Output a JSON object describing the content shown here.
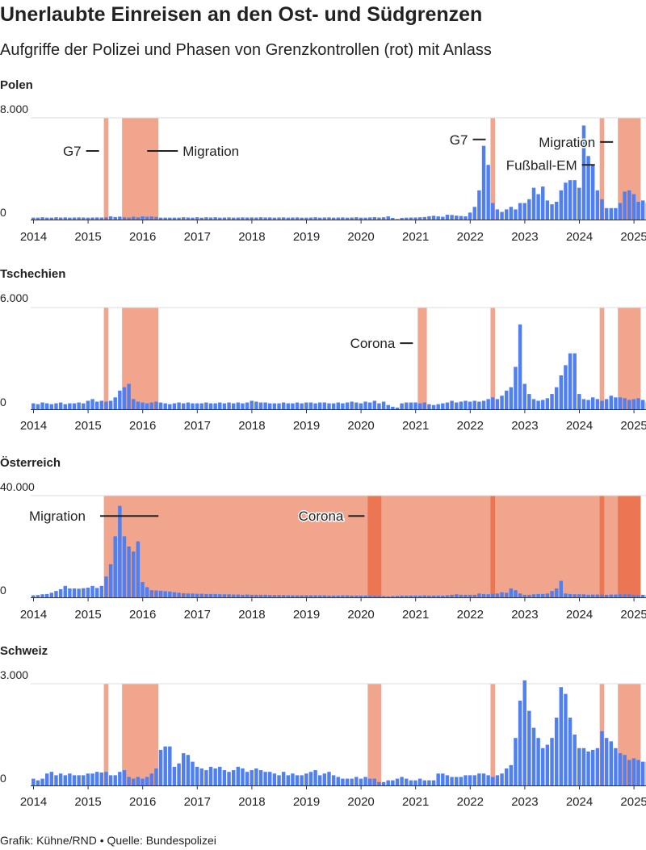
{
  "title": "Unerlaubte Einreisen an den Ost- und Südgrenzen",
  "subtitle": "Aufgriffe der Polizei und Phasen von Grenzkontrollen (rot) mit Anlass",
  "footer": "Grafik: Kühne/RND • Quelle: Bundespolizei",
  "colors": {
    "bar": "#4f7ff0",
    "band": "#f0a58c",
    "band_dark": "#ec7653",
    "grid": "#dddddd",
    "axis": "#333333",
    "text": "#222222"
  },
  "chart_data": [
    {
      "type": "bar",
      "title": "Polen",
      "ytick_labels": [
        "8.000",
        "0"
      ],
      "ylim": [
        0,
        8000
      ],
      "xtick_labels": [
        "2014",
        "2015",
        "2016",
        "2017",
        "2018",
        "2019",
        "2020",
        "2021",
        "2022",
        "2023",
        "2024",
        "2025"
      ],
      "x_start": "2014-01",
      "values": [
        150,
        150,
        180,
        150,
        150,
        180,
        160,
        170,
        150,
        160,
        170,
        160,
        150,
        160,
        170,
        160,
        180,
        250,
        200,
        230,
        180,
        160,
        220,
        180,
        250,
        220,
        240,
        200,
        150,
        150,
        150,
        150,
        150,
        180,
        160,
        150,
        180,
        150,
        180,
        160,
        180,
        150,
        160,
        170,
        150,
        160,
        170,
        160,
        170,
        160,
        180,
        160,
        170,
        150,
        160,
        170,
        150,
        160,
        170,
        150,
        150,
        160,
        180,
        150,
        160,
        170,
        150,
        160,
        170,
        150,
        160,
        180,
        150,
        150,
        170,
        190,
        160,
        180,
        250,
        130,
        40,
        130,
        150,
        160,
        160,
        180,
        200,
        260,
        300,
        250,
        220,
        380,
        360,
        310,
        280,
        250,
        550,
        1000,
        2300,
        5800,
        4300,
        1300,
        800,
        600,
        800,
        1000,
        800,
        1300,
        1300,
        1600,
        2500,
        2000,
        2600,
        1500,
        1200,
        1400,
        2300,
        2900,
        3100,
        3100,
        2500,
        7400,
        5000,
        4300,
        2300,
        1600,
        900,
        900,
        900,
        1300,
        2200,
        2300,
        2000,
        1400,
        1500,
        1300,
        1000,
        800,
        950
      ],
      "bands": [
        {
          "start": "2015-05",
          "end": "2015-06",
          "tone": "light"
        },
        {
          "start": "2015-09",
          "end": "2016-05",
          "tone": "light"
        },
        {
          "start": "2022-06",
          "end": "2022-07",
          "tone": "light"
        },
        {
          "start": "2024-06",
          "end": "2024-07",
          "tone": "light"
        },
        {
          "start": "2024-10",
          "end": "2025-03",
          "tone": "light"
        }
      ],
      "annotations": [
        {
          "text": "G7",
          "x": "2015-05",
          "y": 5400,
          "side": "left"
        },
        {
          "text": "Migration",
          "x": "2016-05",
          "y": 5400,
          "side": "right"
        },
        {
          "text": "G7",
          "x": "2022-06",
          "y": 6300,
          "side": "left"
        },
        {
          "text": "Migration",
          "x": "2024-10",
          "y": 6100,
          "side": "left"
        },
        {
          "text": "Fußball-EM",
          "x": "2024-06",
          "y": 4300,
          "side": "left"
        }
      ]
    },
    {
      "type": "bar",
      "title": "Tschechien",
      "ytick_labels": [
        "6.000",
        "0"
      ],
      "ylim": [
        0,
        6000
      ],
      "xtick_labels": [
        "2014",
        "2015",
        "2016",
        "2017",
        "2018",
        "2019",
        "2020",
        "2021",
        "2022",
        "2023",
        "2024",
        "2025"
      ],
      "x_start": "2014-01",
      "values": [
        350,
        300,
        400,
        350,
        300,
        350,
        400,
        300,
        350,
        350,
        400,
        350,
        500,
        600,
        450,
        500,
        450,
        500,
        700,
        1100,
        1300,
        1500,
        600,
        450,
        400,
        350,
        400,
        450,
        400,
        350,
        300,
        350,
        400,
        350,
        400,
        350,
        350,
        350,
        400,
        350,
        350,
        400,
        350,
        400,
        350,
        400,
        350,
        400,
        500,
        450,
        400,
        400,
        350,
        350,
        350,
        400,
        350,
        350,
        400,
        350,
        400,
        400,
        350,
        400,
        400,
        350,
        350,
        400,
        350,
        400,
        450,
        400,
        350,
        450,
        400,
        500,
        350,
        450,
        250,
        150,
        100,
        350,
        400,
        400,
        400,
        350,
        400,
        300,
        250,
        300,
        350,
        400,
        500,
        400,
        450,
        500,
        450,
        500,
        450,
        500,
        600,
        700,
        600,
        800,
        1100,
        1300,
        2500,
        5000,
        1500,
        900,
        600,
        500,
        550,
        650,
        900,
        1300,
        2000,
        2600,
        3300,
        3300,
        900,
        600,
        550,
        700,
        600,
        500,
        600,
        800,
        700,
        700,
        650,
        550,
        600,
        650,
        550,
        400,
        450,
        600,
        500
      ],
      "bands": [
        {
          "start": "2015-05",
          "end": "2015-06",
          "tone": "light"
        },
        {
          "start": "2015-09",
          "end": "2016-05",
          "tone": "light"
        },
        {
          "start": "2021-02",
          "end": "2021-04",
          "tone": "light"
        },
        {
          "start": "2022-06",
          "end": "2022-07",
          "tone": "light"
        },
        {
          "start": "2024-06",
          "end": "2024-07",
          "tone": "light"
        },
        {
          "start": "2024-10",
          "end": "2025-03",
          "tone": "light"
        }
      ],
      "annotations": [
        {
          "text": "Corona",
          "x": "2021-02",
          "y": 3900,
          "side": "left"
        }
      ]
    },
    {
      "type": "bar",
      "title": "Österreich",
      "ytick_labels": [
        "40.000",
        "0"
      ],
      "ylim": [
        0,
        40000
      ],
      "xtick_labels": [
        "2014",
        "2015",
        "2016",
        "2017",
        "2018",
        "2019",
        "2020",
        "2021",
        "2022",
        "2023",
        "2024",
        "2025"
      ],
      "x_start": "2014-01",
      "values": [
        800,
        900,
        1200,
        1300,
        1800,
        2500,
        3200,
        4500,
        3500,
        3500,
        3400,
        3600,
        3800,
        4500,
        3700,
        4500,
        8200,
        13000,
        24000,
        36000,
        24000,
        20000,
        18000,
        22000,
        6000,
        4000,
        2800,
        2700,
        2600,
        2400,
        2300,
        2000,
        1800,
        1600,
        1500,
        1500,
        1400,
        1400,
        1300,
        1300,
        1300,
        1200,
        1200,
        1200,
        1100,
        1100,
        1000,
        1100,
        1000,
        1000,
        1000,
        1000,
        900,
        900,
        900,
        900,
        800,
        800,
        800,
        800,
        800,
        800,
        800,
        800,
        800,
        700,
        700,
        700,
        800,
        800,
        700,
        700,
        700,
        700,
        700,
        700,
        600,
        500,
        400,
        500,
        600,
        700,
        700,
        700,
        700,
        700,
        800,
        700,
        700,
        700,
        700,
        800,
        1000,
        1200,
        1000,
        1000,
        1000,
        1000,
        1500,
        1300,
        1200,
        1400,
        1500,
        2000,
        1800,
        3500,
        2800,
        1500,
        1000,
        1000,
        1200,
        1300,
        1300,
        1500,
        2500,
        3500,
        6500,
        1500,
        1300,
        1200,
        1200,
        1200,
        1000,
        1100,
        1100,
        1100,
        1000,
        1100,
        1100,
        1200,
        1200,
        1200,
        1000,
        900,
        1000,
        1000,
        900,
        800,
        800
      ],
      "bands": [
        {
          "start": "2015-05",
          "end": "2025-03",
          "tone": "light"
        },
        {
          "start": "2020-03",
          "end": "2020-06",
          "tone": "dark"
        },
        {
          "start": "2022-06",
          "end": "2022-07",
          "tone": "dark"
        },
        {
          "start": "2024-06",
          "end": "2024-07",
          "tone": "dark"
        },
        {
          "start": "2024-10",
          "end": "2025-03",
          "tone": "dark"
        }
      ],
      "annotations": [
        {
          "text": "Migration",
          "x": "2016-05",
          "y": 32000,
          "side": "right-line"
        },
        {
          "text": "Corona",
          "x": "2020-03",
          "y": 32000,
          "side": "left-halo"
        }
      ]
    },
    {
      "type": "bar",
      "title": "Schweiz",
      "ytick_labels": [
        "3.000",
        "0"
      ],
      "ylim": [
        0,
        3000
      ],
      "xtick_labels": [
        "2014",
        "2015",
        "2016",
        "2017",
        "2018",
        "2019",
        "2020",
        "2021",
        "2022",
        "2023",
        "2024",
        "2025"
      ],
      "x_start": "2014-01",
      "values": [
        200,
        150,
        200,
        350,
        400,
        300,
        350,
        300,
        350,
        300,
        300,
        300,
        350,
        350,
        400,
        380,
        400,
        300,
        300,
        400,
        450,
        250,
        200,
        250,
        200,
        250,
        350,
        500,
        1050,
        1150,
        1150,
        550,
        650,
        950,
        900,
        700,
        550,
        500,
        450,
        550,
        500,
        550,
        450,
        400,
        450,
        550,
        500,
        400,
        450,
        500,
        450,
        400,
        400,
        350,
        300,
        400,
        300,
        350,
        300,
        300,
        350,
        400,
        450,
        300,
        350,
        400,
        300,
        250,
        200,
        200,
        200,
        250,
        200,
        250,
        200,
        200,
        100,
        100,
        150,
        150,
        200,
        250,
        200,
        150,
        150,
        200,
        150,
        150,
        150,
        350,
        350,
        300,
        250,
        250,
        250,
        300,
        300,
        300,
        350,
        350,
        300,
        250,
        300,
        350,
        500,
        600,
        1400,
        2500,
        3100,
        2200,
        1700,
        1400,
        1100,
        1200,
        1400,
        2000,
        2900,
        2700,
        2000,
        1500,
        1100,
        1100,
        1000,
        1050,
        1100,
        1600,
        1400,
        1300,
        1100,
        950,
        900,
        750,
        800,
        750,
        700,
        700,
        750,
        700,
        700
      ],
      "bands": [
        {
          "start": "2015-05",
          "end": "2015-06",
          "tone": "light"
        },
        {
          "start": "2015-09",
          "end": "2016-05",
          "tone": "light"
        },
        {
          "start": "2020-03",
          "end": "2020-06",
          "tone": "light"
        },
        {
          "start": "2022-06",
          "end": "2022-07",
          "tone": "light"
        },
        {
          "start": "2024-06",
          "end": "2024-07",
          "tone": "light"
        },
        {
          "start": "2024-10",
          "end": "2025-03",
          "tone": "light"
        }
      ],
      "annotations": []
    }
  ]
}
